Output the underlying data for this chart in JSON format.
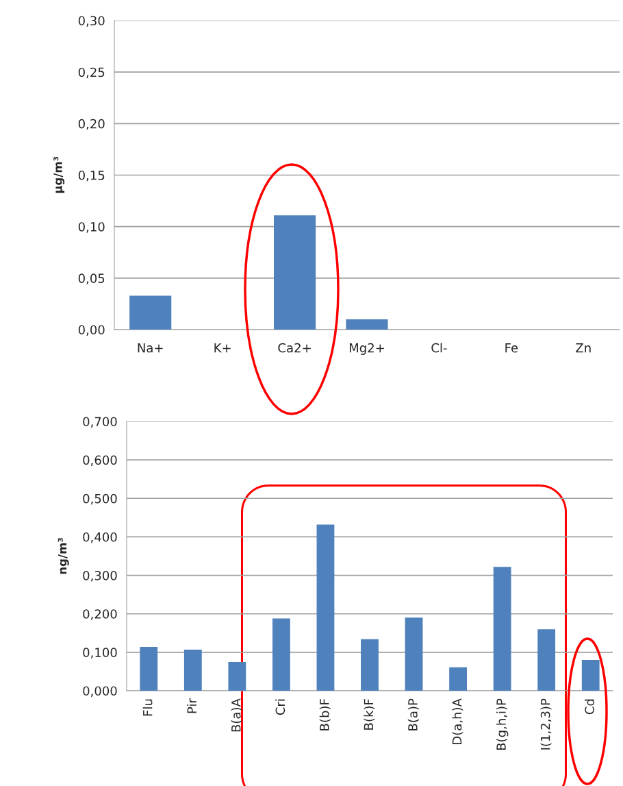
{
  "chart_data": [
    {
      "type": "bar",
      "ylabel": "µg/m³",
      "categories": [
        "Na+",
        "K+",
        "Ca2+",
        "Mg2+",
        "Cl-",
        "Fe",
        "Zn"
      ],
      "values": [
        0.033,
        0,
        0.111,
        0.01,
        0,
        0,
        0
      ],
      "color": "#4f81bd",
      "ylim": [
        0,
        0.3
      ],
      "yticks": [
        {
          "value": 0,
          "label": "0,00"
        },
        {
          "value": 0.05,
          "label": "0,05"
        },
        {
          "value": 0.1,
          "label": "0,10"
        },
        {
          "value": 0.15,
          "label": "0,15"
        },
        {
          "value": 0.2,
          "label": "0,20"
        },
        {
          "value": 0.25,
          "label": "0,25"
        },
        {
          "value": 0.3,
          "label": "0,30"
        }
      ],
      "grid": "y",
      "legend": false
    },
    {
      "type": "bar",
      "ylabel": "ng/m³",
      "categories": [
        "Flu",
        "Pir",
        "B(a)A",
        "Cri",
        "B(b)F",
        "B(k)F",
        "B(a)P",
        "D(a,h)A",
        "B(g,h,i)P",
        "I(1,2,3)P",
        "Cd"
      ],
      "values": [
        0.114,
        0.107,
        0.075,
        0.188,
        0.432,
        0.134,
        0.19,
        0.061,
        0.322,
        0.16,
        0.08
      ],
      "color": "#4f81bd",
      "ylim": [
        0,
        0.7
      ],
      "yticks": [
        {
          "value": 0,
          "label": "0,000"
        },
        {
          "value": 0.1,
          "label": "0,100"
        },
        {
          "value": 0.2,
          "label": "0,200"
        },
        {
          "value": 0.3,
          "label": "0,300"
        },
        {
          "value": 0.4,
          "label": "0,400"
        },
        {
          "value": 0.5,
          "label": "0,500"
        },
        {
          "value": 0.6,
          "label": "0,600"
        },
        {
          "value": 0.7,
          "label": "0,700"
        }
      ],
      "grid": "y",
      "legend": false
    }
  ]
}
